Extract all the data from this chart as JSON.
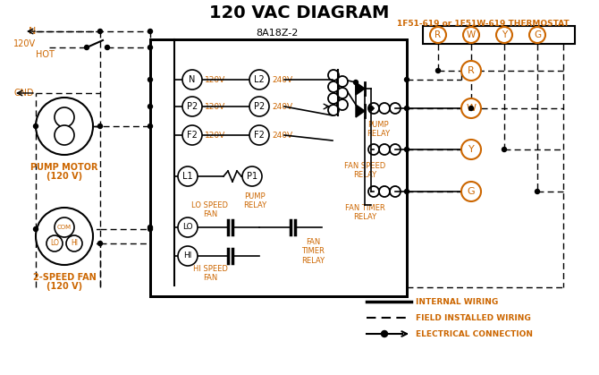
{
  "title": "120 VAC DIAGRAM",
  "bg_color": "#ffffff",
  "orange": "#cc6600",
  "black": "#000000",
  "thermostat_label": "1F51-619 or 1F51W-619 THERMOSTAT",
  "controller_label": "8A18Z-2",
  "legend_items": [
    "INTERNAL WIRING",
    "FIELD INSTALLED WIRING",
    "ELECTRICAL CONNECTION"
  ],
  "therm_terminals": [
    "R",
    "W",
    "Y",
    "G"
  ],
  "left_terms": [
    "N",
    "P2",
    "F2"
  ],
  "right_terms": [
    "L2",
    "P2",
    "F2"
  ],
  "left_volts": [
    "120V",
    "120V",
    "120V"
  ],
  "right_volts": [
    "240V",
    "240V",
    "240V"
  ],
  "pump_motor_label": "PUMP MOTOR",
  "pump_motor_label2": "(120 V)",
  "fan_label": "2-SPEED FAN",
  "fan_label2": "(120 V)"
}
